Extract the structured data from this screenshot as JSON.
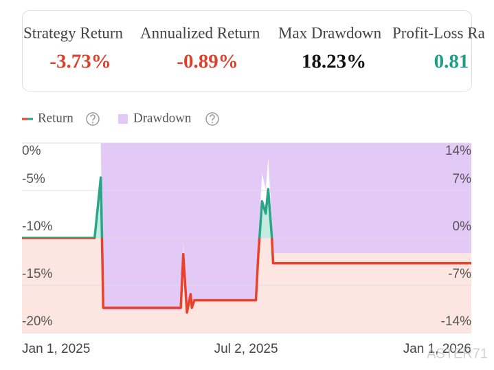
{
  "metrics": [
    {
      "label": "Strategy Return",
      "value": "-3.73%",
      "color": "#d9432b"
    },
    {
      "label": "Annualized Return",
      "value": "-0.89%",
      "color": "#d9432b"
    },
    {
      "label": "Max Drawdown",
      "value": "18.23%",
      "color": "#111111"
    },
    {
      "label": "Profit-Loss Ra",
      "value": "0.81",
      "color": "#1e9e86"
    }
  ],
  "chart_data": {
    "type": "line",
    "x": [
      "2025-01-01",
      "2025-03-01",
      "2025-03-06",
      "2025-03-07",
      "2025-03-08",
      "2025-05-10",
      "2025-05-12",
      "2025-05-15",
      "2025-05-18",
      "2025-05-19",
      "2025-05-21",
      "2025-07-10",
      "2025-07-12",
      "2025-07-15",
      "2025-07-18",
      "2025-07-20",
      "2025-07-23",
      "2025-07-24",
      "2026-01-01"
    ],
    "series": [
      {
        "name": "Return",
        "color": "#e8412c",
        "positive_color": "#2aa58a",
        "axis": "y2",
        "values": [
          0,
          0,
          8.9,
          0,
          -10.3,
          -10.3,
          -2.4,
          -11.0,
          -8.3,
          -10.3,
          -9.2,
          -9.2,
          -2.4,
          5.4,
          3.6,
          7.2,
          0,
          -3.73,
          -3.73
        ]
      },
      {
        "name": "Drawdown",
        "color": "#e3c9f6",
        "values": [
          0,
          0,
          0,
          -8.2,
          -17.6,
          -17.6,
          -10.4,
          -18.23,
          -15.8,
          -17.6,
          -16.6,
          -16.6,
          -10.4,
          -3.2,
          -4.9,
          -1.6,
          -8.2,
          -11.6,
          -11.6
        ]
      }
    ],
    "xlim": [
      "2025-01-01",
      "2026-01-01"
    ],
    "xticks": [
      {
        "value": "2025-01-01",
        "label": "Jan 1, 2025"
      },
      {
        "value": "2025-07-02",
        "label": "Jul 2, 2025"
      },
      {
        "value": "2026-01-01",
        "label": "Jan 1, 2026"
      }
    ],
    "ylim": [
      -20,
      0
    ],
    "yticks": [
      {
        "value": 0,
        "label": "0%"
      },
      {
        "value": -5,
        "label": "-5%"
      },
      {
        "value": -10,
        "label": "-10%"
      },
      {
        "value": -15,
        "label": "-15%"
      },
      {
        "value": -20,
        "label": "-20%"
      }
    ],
    "y2lim": [
      -14,
      14
    ],
    "y2ticks": [
      {
        "value": 14,
        "label": "14%"
      },
      {
        "value": 7,
        "label": "7%"
      },
      {
        "value": 0,
        "label": "0%"
      },
      {
        "value": -7,
        "label": "-7%"
      },
      {
        "value": -14,
        "label": "-14%"
      }
    ],
    "negative_background": "#fde5e1",
    "grid": true,
    "legend": "top-left"
  },
  "watermark": "ASTER71"
}
